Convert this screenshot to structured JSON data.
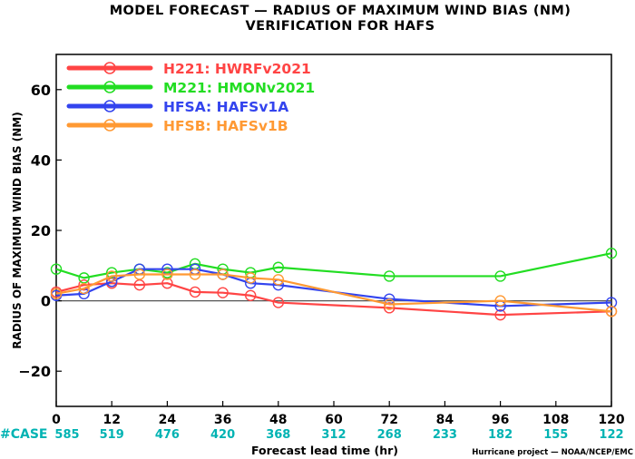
{
  "chart_data": {
    "type": "line",
    "title_line1": "MODEL FORECAST — RADIUS OF MAXIMUM WIND BIAS (NM)",
    "title_line2": "VERIFICATION FOR HAFS",
    "xlabel": "Forecast lead time (hr)",
    "ylabel": "RADIUS OF MAXIMUM WIND BIAS (NM)",
    "xlim": [
      0,
      120
    ],
    "ylim": [
      -30,
      70
    ],
    "xticks": [
      0,
      12,
      24,
      36,
      48,
      60,
      72,
      84,
      96,
      108,
      120
    ],
    "yticks": [
      -20,
      0,
      20,
      40,
      60
    ],
    "case_label": "#CASE",
    "cases": [
      "585",
      "519",
      "476",
      "420",
      "368",
      "312",
      "268",
      "233",
      "182",
      "155",
      "122"
    ],
    "credit": "Hurricane project — NOAA/NCEP/EMC",
    "zero_line": true,
    "series": [
      {
        "id": "H221",
        "label": "HWRFv2021",
        "color": "#ff4444",
        "x": [
          0,
          6,
          12,
          18,
          24,
          30,
          36,
          42,
          48,
          72,
          96,
          120
        ],
        "y": [
          2.5,
          4.5,
          5.0,
          4.5,
          5.0,
          2.5,
          2.3,
          1.5,
          -0.5,
          -2.0,
          -4.0,
          -3.0
        ]
      },
      {
        "id": "M221",
        "label": "HMONv2021",
        "color": "#22dd22",
        "x": [
          0,
          6,
          12,
          18,
          24,
          30,
          36,
          42,
          48,
          72,
          96,
          120
        ],
        "y": [
          9.0,
          6.5,
          8.0,
          9.0,
          8.0,
          10.5,
          9.0,
          8.0,
          9.5,
          7.0,
          7.0,
          13.5
        ]
      },
      {
        "id": "HFSA",
        "label": "HAFSv1A",
        "color": "#3344ee",
        "x": [
          0,
          6,
          12,
          18,
          24,
          30,
          36,
          42,
          48,
          72,
          96,
          120
        ],
        "y": [
          1.5,
          2.0,
          5.5,
          9.0,
          9.0,
          9.0,
          7.5,
          5.0,
          4.5,
          0.5,
          -1.5,
          -0.5
        ]
      },
      {
        "id": "HFSB",
        "label": "HAFSv1B",
        "color": "#ff9933",
        "x": [
          0,
          6,
          12,
          18,
          24,
          30,
          36,
          42,
          48,
          72,
          96,
          120
        ],
        "y": [
          2.0,
          3.5,
          7.0,
          7.5,
          7.5,
          7.5,
          7.5,
          6.5,
          6.0,
          -1.0,
          0.0,
          -3.0
        ]
      }
    ]
  },
  "colors": {
    "case_text": "#00b3b3",
    "axis": "#000000",
    "zero_line": "#555555"
  }
}
